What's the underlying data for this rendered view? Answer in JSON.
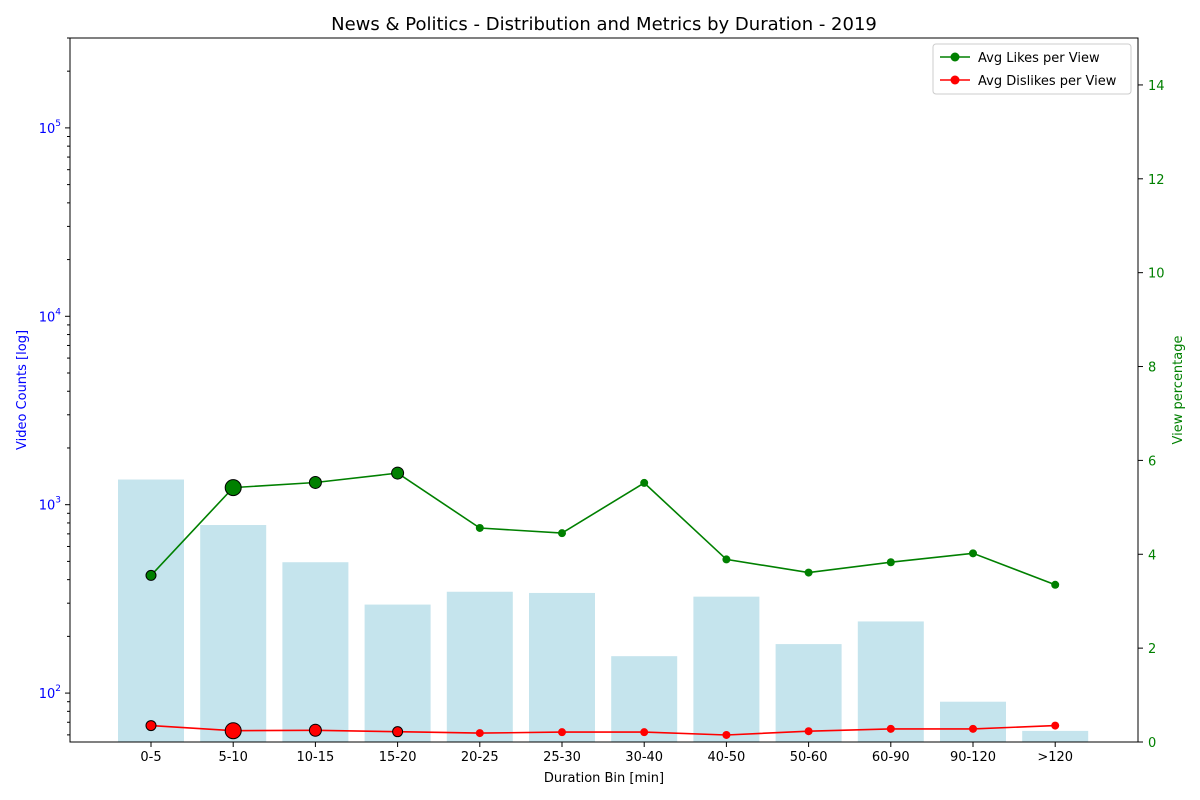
{
  "chart_data": {
    "type": "bar",
    "title": "News & Politics - Distribution and Metrics by Duration - 2019",
    "xlabel": "Duration Bin [min]",
    "ylabel_left": "Video Counts [log]",
    "ylabel_right": "View percentage",
    "categories": [
      "0-5",
      "5-10",
      "10-15",
      "15-20",
      "20-25",
      "25-30",
      "30-40",
      "40-50",
      "50-60",
      "60-90",
      "90-120",
      ">120"
    ],
    "bar_values": [
      1360,
      780,
      495,
      295,
      345,
      340,
      157,
      325,
      182,
      240,
      90,
      63
    ],
    "bar_color": "#add8e6",
    "y_left": {
      "scale": "log",
      "min": 55,
      "max": 300000,
      "tick_values": [
        100,
        1000,
        10000,
        100000
      ],
      "tick_labels": [
        [
          "10",
          "2"
        ],
        [
          "10",
          "3"
        ],
        [
          "10",
          "4"
        ],
        [
          "10",
          "5"
        ]
      ],
      "color": "#0000ff"
    },
    "y_right": {
      "scale": "linear",
      "min": 0,
      "max": 15,
      "tick_values": [
        0,
        2,
        4,
        6,
        8,
        10,
        12,
        14
      ],
      "tick_labels": [
        "0",
        "2",
        "4",
        "6",
        "8",
        "10",
        "12",
        "14"
      ],
      "color": "#008000"
    },
    "series": [
      {
        "name": "Avg Likes per View",
        "color": "#008000",
        "values": [
          3.55,
          5.42,
          5.53,
          5.73,
          4.56,
          4.45,
          5.52,
          3.89,
          3.61,
          3.83,
          4.02,
          3.35
        ],
        "marker_sizes": [
          5,
          8,
          6,
          6,
          4,
          4,
          4,
          4,
          4,
          4,
          4,
          4
        ]
      },
      {
        "name": "Avg Dislikes per View",
        "color": "#ff0000",
        "values": [
          0.35,
          0.24,
          0.25,
          0.22,
          0.19,
          0.21,
          0.21,
          0.15,
          0.23,
          0.28,
          0.28,
          0.35
        ],
        "marker_sizes": [
          5,
          8,
          6,
          5,
          4,
          4,
          4,
          4,
          4,
          4,
          4,
          4
        ]
      }
    ],
    "legend": {
      "position": "top-right",
      "entries": [
        "Avg Likes per View",
        "Avg Dislikes per View"
      ]
    },
    "grid": false
  }
}
